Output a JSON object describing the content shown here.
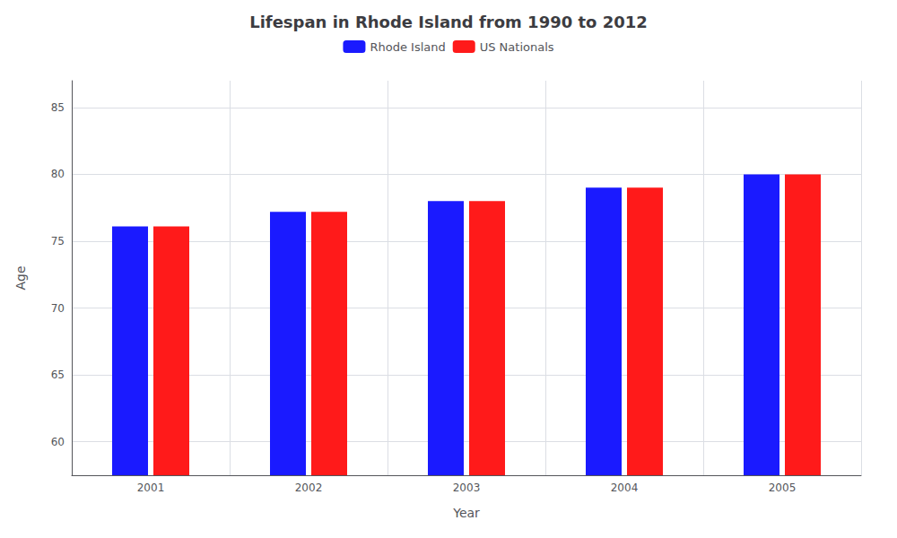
{
  "chart_data": {
    "type": "bar",
    "title": "Lifespan in Rhode Island from 1990 to 2012",
    "x_label": "Year",
    "y_label": "Age",
    "categories": [
      "2001",
      "2002",
      "2003",
      "2004",
      "2005"
    ],
    "series": [
      {
        "name": "Rhode Island",
        "color": "#1a1aff",
        "values": [
          76.1,
          77.2,
          78.0,
          79.0,
          80.0
        ]
      },
      {
        "name": "US Nationals",
        "color": "#ff1a1a",
        "values": [
          76.1,
          77.2,
          78.0,
          79.0,
          80.0
        ]
      }
    ],
    "ylim": [
      57.5,
      87
    ],
    "yticks": [
      60,
      65,
      70,
      75,
      80,
      85
    ],
    "grid": true,
    "legend": "top"
  }
}
